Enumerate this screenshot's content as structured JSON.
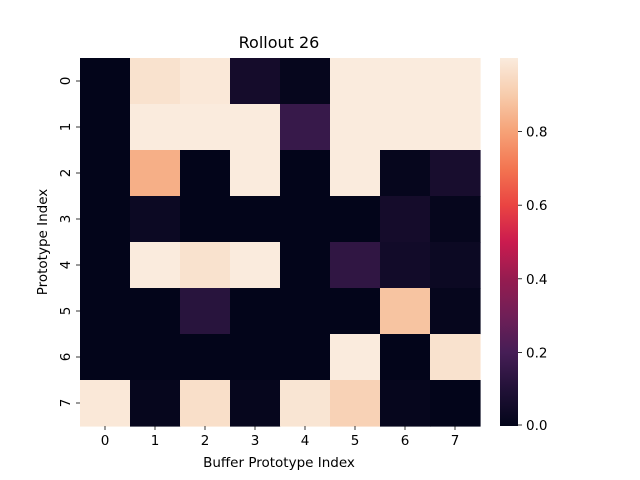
{
  "chart_data": {
    "type": "heatmap",
    "title": "Rollout 26",
    "xlabel": "Buffer Prototype Index",
    "ylabel": "Prototype Index",
    "x_categories": [
      "0",
      "1",
      "2",
      "3",
      "4",
      "5",
      "6",
      "7"
    ],
    "y_categories": [
      "0",
      "1",
      "2",
      "3",
      "4",
      "5",
      "6",
      "7"
    ],
    "values": [
      [
        0.0,
        0.97,
        0.99,
        0.06,
        0.01,
        1.0,
        1.0,
        1.0
      ],
      [
        0.0,
        1.0,
        1.0,
        1.0,
        0.16,
        1.0,
        1.0,
        1.0
      ],
      [
        0.0,
        0.83,
        0.0,
        1.0,
        0.0,
        1.0,
        0.01,
        0.07
      ],
      [
        0.0,
        0.03,
        0.0,
        0.0,
        0.0,
        0.0,
        0.06,
        0.01
      ],
      [
        0.0,
        1.0,
        0.97,
        1.0,
        0.0,
        0.14,
        0.05,
        0.03
      ],
      [
        0.0,
        0.0,
        0.12,
        0.0,
        0.0,
        0.0,
        0.88,
        0.01
      ],
      [
        0.0,
        0.0,
        0.0,
        0.0,
        0.0,
        1.0,
        0.0,
        0.97
      ],
      [
        0.99,
        0.01,
        0.96,
        0.01,
        0.98,
        0.92,
        0.01,
        0.0
      ]
    ],
    "colorbar": {
      "range": [
        0.0,
        1.0
      ],
      "ticks": [
        0.0,
        0.2,
        0.4,
        0.6,
        0.8
      ],
      "tick_labels": [
        "0.0",
        "0.2",
        "0.4",
        "0.6",
        "0.8"
      ]
    },
    "colormap": "rocket",
    "grid": false
  }
}
